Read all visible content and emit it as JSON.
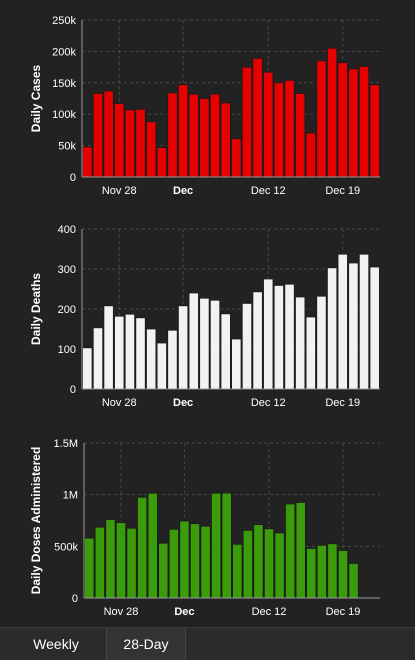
{
  "tabs": {
    "weekly_label": "Weekly",
    "day28_label": "28-Day",
    "active": "28-Day"
  },
  "chart_data": [
    {
      "type": "bar",
      "ylabel": "Daily Cases",
      "color": "#e60000",
      "ylim": [
        0,
        250000
      ],
      "yticks": [
        0,
        50000,
        100000,
        150000,
        200000,
        250000
      ],
      "ytick_labels": [
        "0",
        "50k",
        "100k",
        "150k",
        "200k",
        "250k"
      ],
      "x_tick_labels": [
        {
          "label": "Nov 28",
          "index": 3,
          "bold": false
        },
        {
          "label": "Dec",
          "index": 9,
          "bold": true
        },
        {
          "label": "Dec 12",
          "index": 17,
          "bold": false
        },
        {
          "label": "Dec 19",
          "index": 24,
          "bold": false
        }
      ],
      "values": [
        48000,
        133000,
        137000,
        117000,
        107000,
        108000,
        88000,
        47000,
        134000,
        147000,
        132000,
        125000,
        132000,
        118000,
        61000,
        175000,
        189000,
        167000,
        150000,
        154000,
        133000,
        70000,
        185000,
        205000,
        182000,
        172000,
        176000,
        147000
      ]
    },
    {
      "type": "bar",
      "ylabel": "Daily Deaths",
      "color": "#f2f2f2",
      "ylim": [
        0,
        400
      ],
      "yticks": [
        0,
        100,
        200,
        300,
        400
      ],
      "ytick_labels": [
        "0",
        "100",
        "200",
        "300",
        "400"
      ],
      "x_tick_labels": [
        {
          "label": "Nov 28",
          "index": 3,
          "bold": false
        },
        {
          "label": "Dec",
          "index": 9,
          "bold": true
        },
        {
          "label": "Dec 12",
          "index": 17,
          "bold": false
        },
        {
          "label": "Dec 19",
          "index": 24,
          "bold": false
        }
      ],
      "values": [
        103,
        153,
        208,
        182,
        187,
        178,
        150,
        115,
        147,
        208,
        240,
        227,
        222,
        188,
        125,
        214,
        243,
        275,
        259,
        262,
        230,
        180,
        232,
        303,
        337,
        315,
        337,
        305
      ]
    },
    {
      "type": "bar",
      "ylabel": "Daily Doses Administered",
      "color": "#3a9c0a",
      "ylim": [
        0,
        1500000
      ],
      "yticks": [
        0,
        500000,
        1000000,
        1500000
      ],
      "ytick_labels": [
        "0",
        "500k",
        "1M",
        "1.5M"
      ],
      "x_tick_labels": [
        {
          "label": "Nov 28",
          "index": 3,
          "bold": false
        },
        {
          "label": "Dec",
          "index": 9,
          "bold": true
        },
        {
          "label": "Dec 12",
          "index": 17,
          "bold": false
        },
        {
          "label": "Dec 19",
          "index": 24,
          "bold": false
        }
      ],
      "values": [
        580000,
        685000,
        760000,
        730000,
        675000,
        975000,
        1015000,
        530000,
        665000,
        745000,
        720000,
        695000,
        1015000,
        1015000,
        520000,
        655000,
        710000,
        670000,
        630000,
        910000,
        925000,
        480000,
        510000,
        525000,
        460000,
        335000,
        null,
        null
      ]
    }
  ]
}
